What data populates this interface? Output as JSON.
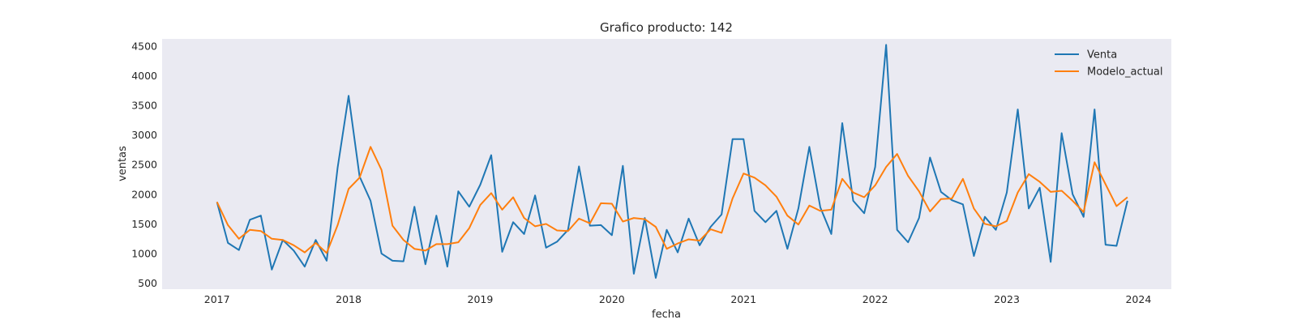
{
  "chart_data": {
    "type": "line",
    "title": "Grafico producto: 142",
    "xlabel": "fecha",
    "ylabel": "ventas",
    "x_start": "2017-01",
    "x_end": "2023-12",
    "x_ticks": [
      "2017",
      "2018",
      "2019",
      "2020",
      "2021",
      "2022",
      "2023",
      "2024"
    ],
    "y_ticks": [
      500,
      1000,
      1500,
      2000,
      2500,
      3000,
      3500,
      4000,
      4500
    ],
    "xlim": [
      "2016-08",
      "2024-04"
    ],
    "ylim": [
      400,
      4620
    ],
    "grid": false,
    "legend_position": "top-right",
    "background": "#eaeaf2",
    "series": [
      {
        "name": "Venta",
        "color": "#1f77b4",
        "values": [
          1870,
          1180,
          1060,
          1570,
          1640,
          730,
          1230,
          1050,
          780,
          1230,
          880,
          2450,
          3660,
          2300,
          1890,
          1000,
          880,
          870,
          1790,
          820,
          1640,
          780,
          2050,
          1790,
          2160,
          2660,
          1030,
          1530,
          1330,
          1980,
          1100,
          1200,
          1400,
          2470,
          1470,
          1480,
          1310,
          2480,
          660,
          1600,
          590,
          1400,
          1020,
          1590,
          1140,
          1450,
          1660,
          2930,
          2930,
          1720,
          1530,
          1720,
          1080,
          1760,
          2800,
          1780,
          1330,
          3200,
          1890,
          1680,
          2460,
          4520,
          1400,
          1190,
          1600,
          2620,
          2040,
          1900,
          1830,
          960,
          1620,
          1400,
          2030,
          3430,
          1760,
          2110,
          860,
          3030,
          2000,
          1620,
          3430,
          1150,
          1130,
          1890
        ]
      },
      {
        "name": "Modelo_actual",
        "color": "#ff7f0e",
        "values": [
          1870,
          1480,
          1250,
          1400,
          1380,
          1250,
          1230,
          1140,
          1020,
          1180,
          1010,
          1480,
          2090,
          2280,
          2800,
          2410,
          1470,
          1230,
          1080,
          1050,
          1160,
          1160,
          1190,
          1430,
          1820,
          2020,
          1740,
          1950,
          1600,
          1460,
          1500,
          1390,
          1380,
          1590,
          1510,
          1850,
          1840,
          1540,
          1600,
          1580,
          1450,
          1080,
          1170,
          1240,
          1220,
          1410,
          1350,
          1930,
          2350,
          2280,
          2150,
          1960,
          1640,
          1490,
          1810,
          1720,
          1740,
          2260,
          2030,
          1950,
          2150,
          2460,
          2680,
          2310,
          2050,
          1710,
          1920,
          1930,
          2260,
          1760,
          1500,
          1460,
          1550,
          2030,
          2340,
          2210,
          2040,
          2060,
          1890,
          1700,
          2540,
          2170,
          1800,
          1950
        ]
      }
    ]
  }
}
